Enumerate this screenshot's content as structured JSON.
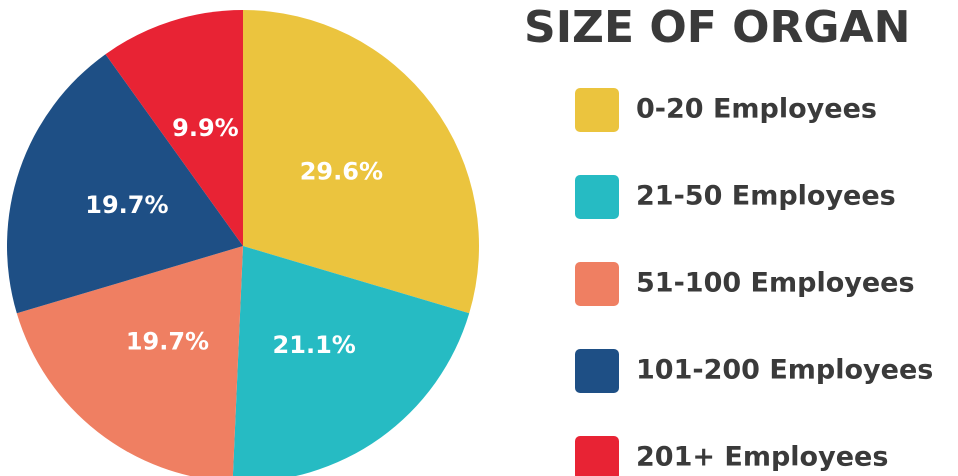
{
  "chart_data": {
    "type": "pie",
    "title": "SIZE OF ORGAN",
    "categories": [
      "0-20 Employees",
      "21-50 Employees",
      "51-100 Employees",
      "101-200 Employees",
      "201+ Employees"
    ],
    "values": [
      29.6,
      21.1,
      19.7,
      19.7,
      9.9
    ],
    "value_labels": [
      "29.6%",
      "21.1%",
      "19.7%",
      "19.7%",
      "9.9%"
    ],
    "colors": [
      "#ebc43e",
      "#26bbc3",
      "#ef7f62",
      "#1e4f85",
      "#e82334"
    ]
  }
}
